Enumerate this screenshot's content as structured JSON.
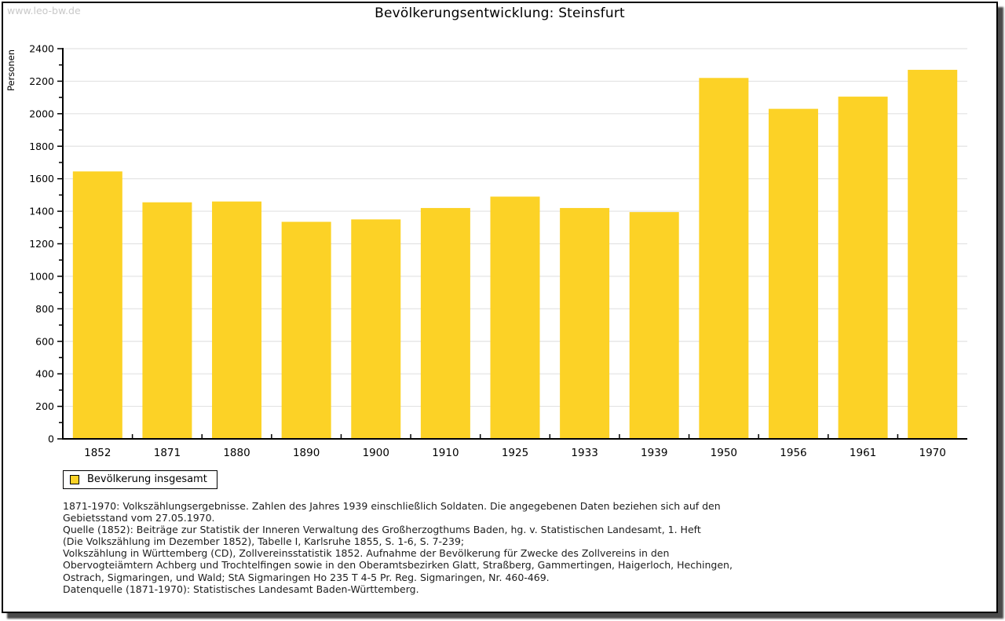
{
  "watermark": "www.leo-bw.de",
  "title": "Bevölkerungsentwicklung: Steinsfurt",
  "legend": {
    "label": "Bevölkerung insgesamt"
  },
  "colors": {
    "bar": "#FCD226",
    "grid": "#E2E2E2",
    "axis": "#000000",
    "tick_label": "#000000",
    "watermark": "#C9C9C9"
  },
  "footnotes": {
    "lines": [
      "1871-1970: Volkszählungsergebnisse. Zahlen des Jahres 1939 einschließlich Soldaten. Die angegebenen Daten beziehen sich auf den",
      "Gebietsstand vom 27.05.1970.",
      "Quelle (1852): Beiträge zur Statistik der Inneren Verwaltung des Großherzogthums Baden, hg. v. Statistischen Landesamt, 1. Heft",
      "(Die Volkszählung im Dezember 1852), Tabelle I, Karlsruhe 1855, S. 1-6, S. 7-239;",
      "Volkszählung in Württemberg (CD), Zollvereinsstatistik 1852. Aufnahme der Bevölkerung für Zwecke des Zollvereins in den",
      "Obervogteiämtern Achberg und Trochtelfingen sowie in den Oberamtsbezirken Glatt, Straßberg, Gammertingen, Haigerloch, Hechingen,",
      "Ostrach, Sigmaringen, und Wald; StA Sigmaringen Ho 235 T 4-5 Pr. Reg. Sigmaringen, Nr. 460-469."
    ],
    "source_line": "Datenquelle (1871-1970): Statistisches Landesamt Baden-Württemberg."
  },
  "chart_data": {
    "type": "bar",
    "title": "Bevölkerungsentwicklung: Steinsfurt",
    "series_name": "Bevölkerung insgesamt",
    "categories": [
      "1852",
      "1871",
      "1880",
      "1890",
      "1900",
      "1910",
      "1925",
      "1933",
      "1939",
      "1950",
      "1956",
      "1961",
      "1970"
    ],
    "values": [
      1645,
      1455,
      1460,
      1335,
      1350,
      1420,
      1490,
      1420,
      1395,
      2220,
      2030,
      2105,
      2270
    ],
    "xlabel": "",
    "ylabel": "Personen",
    "ylim": [
      0,
      2400
    ],
    "ytick_step": 200,
    "yminor_tick_step": 100,
    "grid": true,
    "legend_position": "bottom-left"
  }
}
